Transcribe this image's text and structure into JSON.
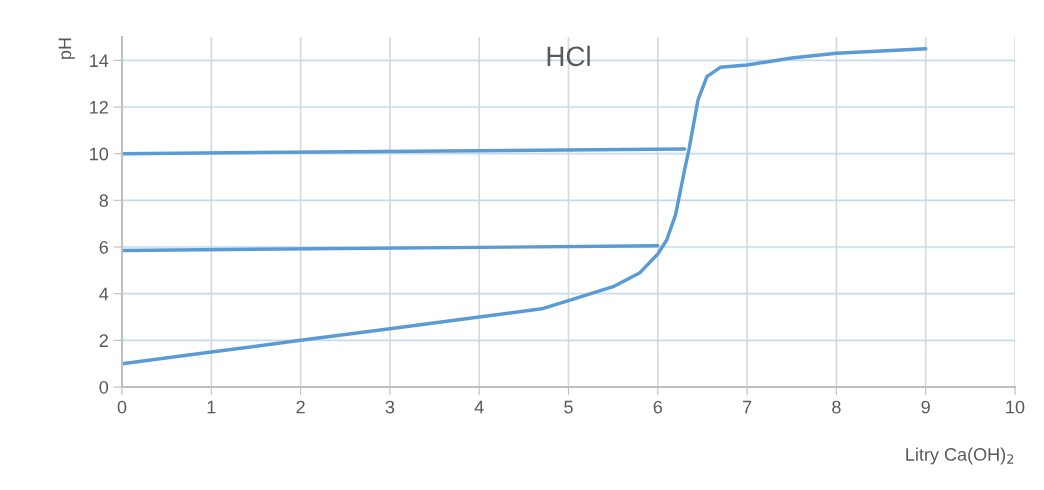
{
  "chart_data": {
    "type": "line",
    "title": "HCl",
    "xlabel": "Litry Ca(OH)$_{2}$",
    "ylabel": "pH",
    "xlim": [
      0,
      10
    ],
    "xticks": [
      0,
      1,
      2,
      3,
      4,
      5,
      6,
      7,
      8,
      9,
      10
    ],
    "ylim": [
      0,
      15
    ],
    "yticks": [
      0,
      2,
      4,
      6,
      8,
      10,
      12,
      14
    ],
    "grid": true,
    "legend": false,
    "marker": "none",
    "line_style": "solid",
    "series": [
      {
        "color": "#5b9bd5",
        "x": [
          0,
          1,
          2,
          3,
          4,
          4.7,
          5,
          5.5,
          5.8,
          6,
          6.1,
          6.2,
          6.3,
          6.35,
          6.45,
          6.55,
          6.7,
          7,
          7.5,
          8,
          8.5,
          9
        ],
        "values": [
          1.0,
          1.5,
          2.0,
          2.5,
          3.0,
          3.35,
          3.7,
          4.3,
          4.9,
          5.7,
          6.3,
          7.4,
          9.3,
          10.2,
          12.3,
          13.3,
          13.7,
          13.8,
          14.1,
          14.3,
          14.4,
          14.5
        ]
      },
      {
        "color": "#5b9bd5",
        "x": [
          0,
          6
        ],
        "values": [
          5.85,
          6.05
        ]
      },
      {
        "color": "#5b9bd5",
        "x": [
          0,
          6.3
        ],
        "values": [
          10.0,
          10.2
        ]
      }
    ]
  }
}
